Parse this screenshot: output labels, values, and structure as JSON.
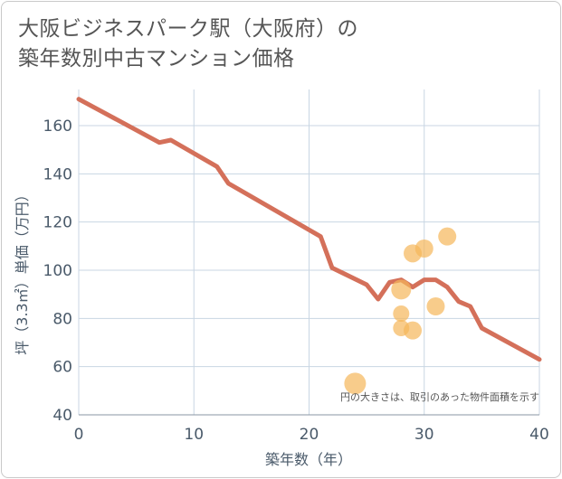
{
  "title_line1": "大阪ビジネスパーク駅（大阪府）の",
  "title_line2": "築年数別中古マンション価格",
  "chart_data": {
    "type": "line+scatter",
    "xlabel": "築年数（年）",
    "ylabel": "坪（3.3㎡）単価（万円）",
    "xlim": [
      0,
      40
    ],
    "ylim": [
      40,
      175
    ],
    "xticks": [
      0,
      10,
      20,
      30,
      40
    ],
    "yticks": [
      40,
      60,
      80,
      100,
      120,
      140,
      160
    ],
    "note": "円の大きさは、取引のあった物件面積を示す",
    "line_color": "#d4705a",
    "bubble_color": "#f5b75a",
    "series": [
      {
        "name": "trend",
        "type": "line",
        "x": [
          0,
          7,
          8,
          12,
          13,
          21,
          22,
          25,
          26,
          27,
          28,
          29,
          30,
          31,
          32,
          33,
          34,
          35,
          40
        ],
        "y": [
          171,
          153,
          154,
          143,
          136,
          114,
          101,
          94,
          88,
          95,
          96,
          93,
          96,
          96,
          93,
          87,
          85,
          76,
          63
        ]
      },
      {
        "name": "transactions",
        "type": "scatter",
        "points": [
          {
            "x": 24,
            "y": 53,
            "size": 12
          },
          {
            "x": 28,
            "y": 92,
            "size": 11
          },
          {
            "x": 28,
            "y": 82,
            "size": 9
          },
          {
            "x": 28,
            "y": 76,
            "size": 9
          },
          {
            "x": 29,
            "y": 75,
            "size": 10
          },
          {
            "x": 29,
            "y": 107,
            "size": 10
          },
          {
            "x": 30,
            "y": 109,
            "size": 10
          },
          {
            "x": 31,
            "y": 85,
            "size": 10
          },
          {
            "x": 32,
            "y": 114,
            "size": 10
          }
        ]
      }
    ]
  }
}
